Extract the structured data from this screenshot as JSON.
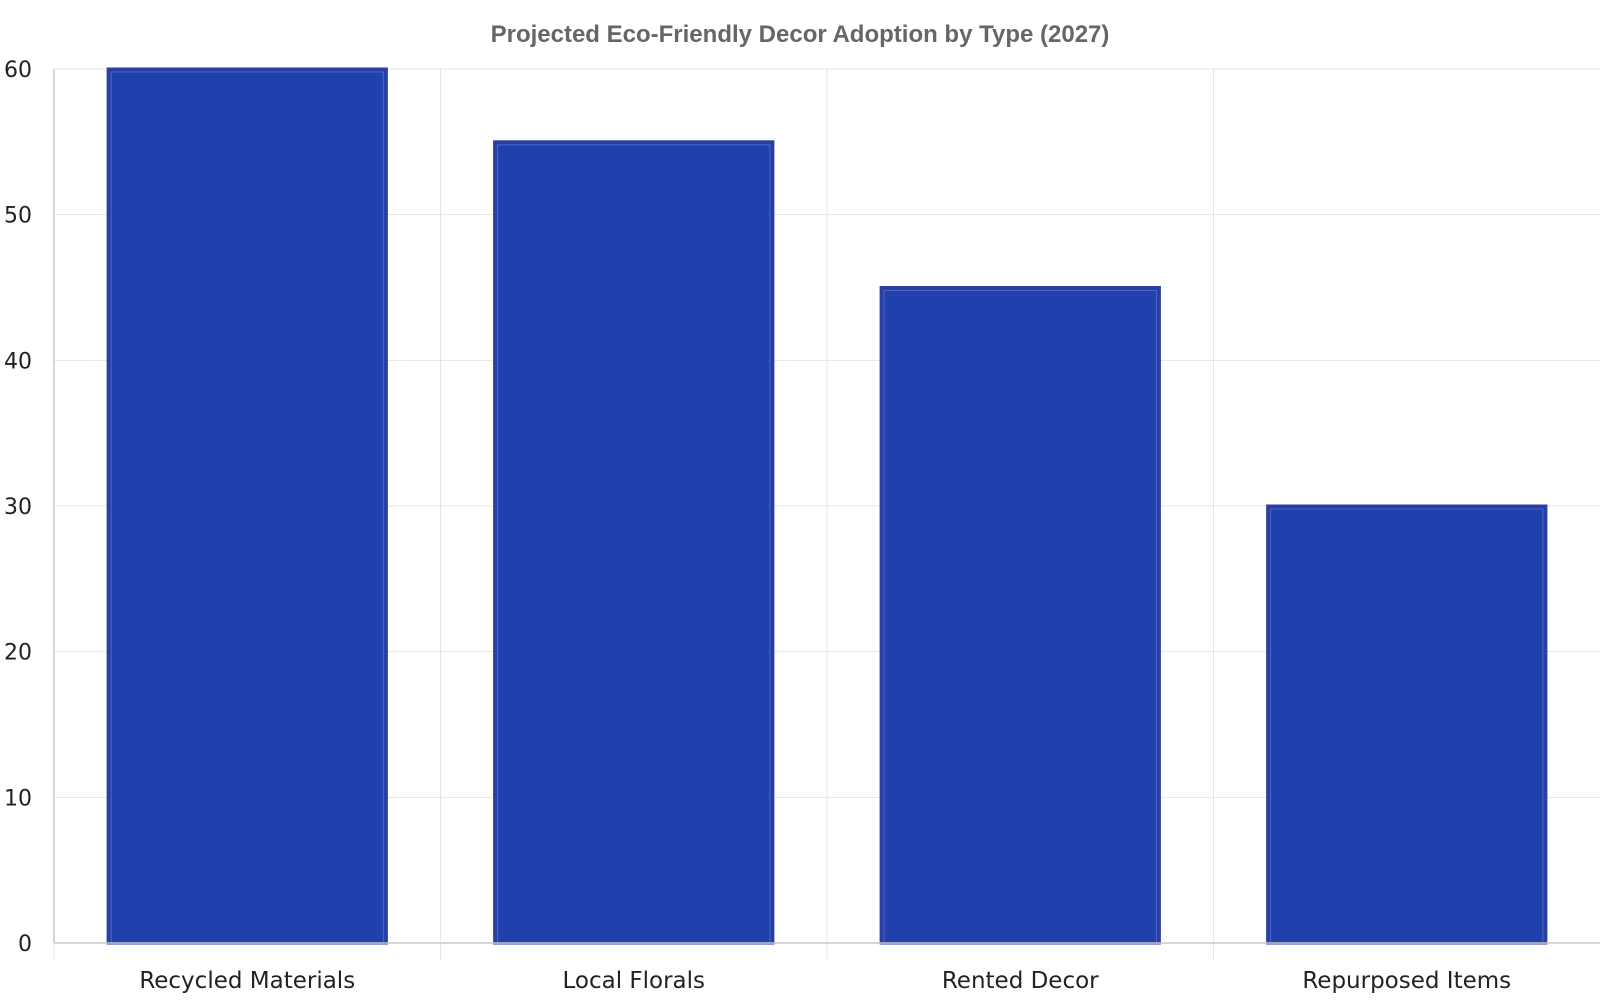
{
  "chart_data": {
    "type": "bar",
    "title": "Projected Eco-Friendly Decor Adoption by Type (2027)",
    "xlabel": "",
    "ylabel": "",
    "categories": [
      "Recycled Materials",
      "Local Florals",
      "Rented Decor",
      "Repurposed Items"
    ],
    "values": [
      60,
      55,
      45,
      30
    ],
    "ylim": [
      0,
      60
    ],
    "yticks": [
      0,
      10,
      20,
      30,
      40,
      50,
      60
    ],
    "grid": true,
    "legend": "none"
  },
  "colors": {
    "bar_fill": "#1f40ad",
    "bar_edge": "#2a3fa0",
    "bar_inner_edge": "#4d66c8",
    "title": "#666666",
    "grid": "#e6e6e6",
    "axis": "#c8c8c8"
  }
}
